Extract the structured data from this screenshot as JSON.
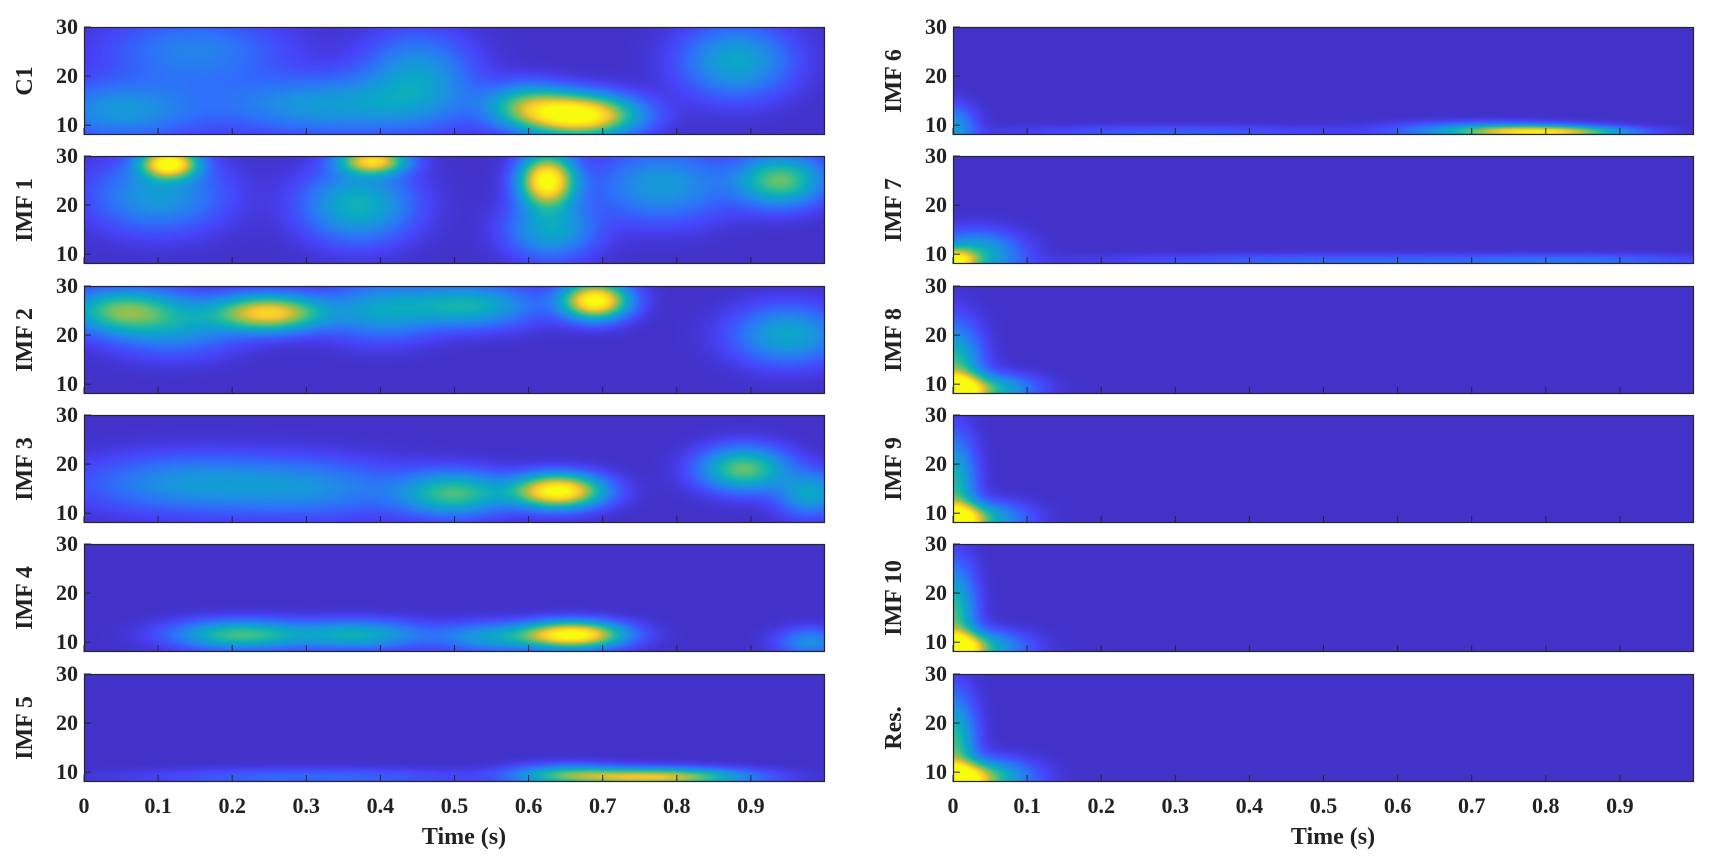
{
  "chart_data": [
    {
      "type": "heatmap",
      "panels": [
        {
          "label": "C1",
          "blobs": [
            {
              "t": 0.67,
              "f": 12,
              "amp": 1.0,
              "st": 0.05,
              "sf": 2.8
            },
            {
              "t": 0.6,
              "f": 14,
              "amp": 0.45,
              "st": 0.04,
              "sf": 3
            },
            {
              "t": 0.05,
              "f": 13,
              "amp": 0.28,
              "st": 0.07,
              "sf": 4
            },
            {
              "t": 0.33,
              "f": 14,
              "amp": 0.3,
              "st": 0.1,
              "sf": 4
            },
            {
              "t": 0.45,
              "f": 20,
              "amp": 0.3,
              "st": 0.05,
              "sf": 6
            },
            {
              "t": 0.88,
              "f": 23,
              "amp": 0.35,
              "st": 0.05,
              "sf": 5
            },
            {
              "t": 0.15,
              "f": 25,
              "amp": 0.22,
              "st": 0.08,
              "sf": 5
            }
          ]
        },
        {
          "label": "IMF 1",
          "blobs": [
            {
              "t": 0.115,
              "f": 28.5,
              "amp": 0.95,
              "st": 0.025,
              "sf": 2
            },
            {
              "t": 0.39,
              "f": 29,
              "amp": 0.8,
              "st": 0.03,
              "sf": 1.8
            },
            {
              "t": 0.625,
              "f": 25,
              "amp": 1.0,
              "st": 0.025,
              "sf": 3.5
            },
            {
              "t": 0.63,
              "f": 15,
              "amp": 0.35,
              "st": 0.04,
              "sf": 4
            },
            {
              "t": 0.94,
              "f": 25,
              "amp": 0.55,
              "st": 0.04,
              "sf": 3.5
            },
            {
              "t": 0.37,
              "f": 20,
              "amp": 0.4,
              "st": 0.05,
              "sf": 5
            },
            {
              "t": 0.1,
              "f": 22,
              "amp": 0.3,
              "st": 0.06,
              "sf": 5
            },
            {
              "t": 0.78,
              "f": 24,
              "amp": 0.3,
              "st": 0.06,
              "sf": 5
            }
          ]
        },
        {
          "label": "IMF 2",
          "blobs": [
            {
              "t": 0.25,
              "f": 24.5,
              "amp": 0.8,
              "st": 0.05,
              "sf": 2.5
            },
            {
              "t": 0.69,
              "f": 27,
              "amp": 1.0,
              "st": 0.03,
              "sf": 2.5
            },
            {
              "t": 0.05,
              "f": 25,
              "amp": 0.5,
              "st": 0.05,
              "sf": 3
            },
            {
              "t": 0.52,
              "f": 26,
              "amp": 0.4,
              "st": 0.06,
              "sf": 3
            },
            {
              "t": 0.95,
              "f": 20,
              "amp": 0.35,
              "st": 0.05,
              "sf": 4
            },
            {
              "t": 0.12,
              "f": 22,
              "amp": 0.28,
              "st": 0.06,
              "sf": 4
            },
            {
              "t": 0.4,
              "f": 25,
              "amp": 0.3,
              "st": 0.05,
              "sf": 4
            }
          ]
        },
        {
          "label": "IMF 3",
          "blobs": [
            {
              "t": 0.64,
              "f": 14.5,
              "amp": 1.0,
              "st": 0.04,
              "sf": 2.3
            },
            {
              "t": 0.5,
              "f": 14,
              "amp": 0.5,
              "st": 0.05,
              "sf": 3
            },
            {
              "t": 0.89,
              "f": 19,
              "amp": 0.55,
              "st": 0.04,
              "sf": 3
            },
            {
              "t": 0.15,
              "f": 16,
              "amp": 0.28,
              "st": 0.1,
              "sf": 4
            },
            {
              "t": 0.32,
              "f": 15,
              "amp": 0.2,
              "st": 0.08,
              "sf": 4
            },
            {
              "t": 0.98,
              "f": 14,
              "amp": 0.35,
              "st": 0.03,
              "sf": 3
            }
          ]
        },
        {
          "label": "IMF 4",
          "blobs": [
            {
              "t": 0.66,
              "f": 11.5,
              "amp": 1.0,
              "st": 0.045,
              "sf": 1.8
            },
            {
              "t": 0.21,
              "f": 11.5,
              "amp": 0.5,
              "st": 0.06,
              "sf": 2
            },
            {
              "t": 0.37,
              "f": 11.5,
              "amp": 0.38,
              "st": 0.06,
              "sf": 2
            },
            {
              "t": 0.55,
              "f": 11,
              "amp": 0.3,
              "st": 0.05,
              "sf": 2
            },
            {
              "t": 0.98,
              "f": 10,
              "amp": 0.25,
              "st": 0.03,
              "sf": 2
            }
          ]
        },
        {
          "label": "IMF 5",
          "blobs": [
            {
              "t": 0.77,
              "f": 9,
              "amp": 0.75,
              "st": 0.08,
              "sf": 1.2
            },
            {
              "t": 0.65,
              "f": 9.5,
              "amp": 0.35,
              "st": 0.05,
              "sf": 1.4
            },
            {
              "t": 0.3,
              "f": 9,
              "amp": 0.15,
              "st": 0.15,
              "sf": 1.2
            }
          ]
        },
        {
          "label": "IMF 6",
          "blobs": [
            {
              "t": 0.8,
              "f": 8.6,
              "amp": 0.75,
              "st": 0.07,
              "sf": 0.8
            },
            {
              "t": 0.72,
              "f": 9,
              "amp": 0.3,
              "st": 0.08,
              "sf": 1.1
            },
            {
              "t": 0.0,
              "f": 9.5,
              "amp": 0.3,
              "st": 0.02,
              "sf": 3
            },
            {
              "t": 0.3,
              "f": 8.5,
              "amp": 0.12,
              "st": 0.15,
              "sf": 1
            }
          ]
        },
        {
          "label": "IMF 7",
          "blobs": [
            {
              "t": 0.0,
              "f": 8.7,
              "amp": 0.8,
              "st": 0.02,
              "sf": 1.5
            },
            {
              "t": 0.03,
              "f": 10,
              "amp": 0.4,
              "st": 0.04,
              "sf": 3
            },
            {
              "t": 0.5,
              "f": 8.7,
              "amp": 0.14,
              "st": 0.2,
              "sf": 0.9
            },
            {
              "t": 0.85,
              "f": 8.7,
              "amp": 0.14,
              "st": 0.12,
              "sf": 0.9
            }
          ]
        },
        {
          "label": "IMF 8",
          "blobs": [
            {
              "t": 0.0,
              "f": 8.5,
              "amp": 1.0,
              "st": 0.025,
              "sf": 2.2
            },
            {
              "t": 0.0,
              "f": 13,
              "amp": 0.5,
              "st": 0.025,
              "sf": 6
            },
            {
              "t": 0.05,
              "f": 9,
              "amp": 0.4,
              "st": 0.04,
              "sf": 2
            }
          ]
        },
        {
          "label": "IMF 9",
          "blobs": [
            {
              "t": 0.0,
              "f": 8.5,
              "amp": 0.95,
              "st": 0.025,
              "sf": 2.2
            },
            {
              "t": 0.0,
              "f": 15,
              "amp": 0.45,
              "st": 0.02,
              "sf": 7
            },
            {
              "t": 0.04,
              "f": 9,
              "amp": 0.35,
              "st": 0.04,
              "sf": 2.2
            }
          ]
        },
        {
          "label": "IMF 10",
          "blobs": [
            {
              "t": 0.0,
              "f": 8.5,
              "amp": 1.0,
              "st": 0.025,
              "sf": 2.2
            },
            {
              "t": 0.0,
              "f": 15,
              "amp": 0.5,
              "st": 0.02,
              "sf": 7
            },
            {
              "t": 0.04,
              "f": 9,
              "amp": 0.35,
              "st": 0.04,
              "sf": 2.2
            }
          ]
        },
        {
          "label": "Res.",
          "blobs": [
            {
              "t": 0.0,
              "f": 8.5,
              "amp": 1.0,
              "st": 0.03,
              "sf": 2.2
            },
            {
              "t": 0.0,
              "f": 15,
              "amp": 0.5,
              "st": 0.02,
              "sf": 7
            },
            {
              "t": 0.05,
              "f": 9,
              "amp": 0.4,
              "st": 0.04,
              "sf": 2.4
            }
          ]
        }
      ],
      "columns": [
        {
          "panels": [
            0,
            1,
            2,
            3,
            4,
            5
          ],
          "xlabel": "Time (s)"
        },
        {
          "panels": [
            6,
            7,
            8,
            9,
            10,
            11
          ],
          "xlabel": "Time (s)"
        }
      ],
      "x_ticks": [
        "0",
        "0.1",
        "0.2",
        "0.3",
        "0.4",
        "0.5",
        "0.6",
        "0.7",
        "0.8",
        "0.9"
      ],
      "x_tick_values": [
        0,
        0.1,
        0.2,
        0.3,
        0.4,
        0.5,
        0.6,
        0.7,
        0.8,
        0.9
      ],
      "xlim": [
        0,
        1
      ],
      "y_ticks": [
        "10",
        "20",
        "30"
      ],
      "y_tick_values": [
        10,
        20,
        30
      ],
      "ylim": [
        8,
        30
      ],
      "colormap": "parula",
      "colormap_stops": [
        "#3e26a8",
        "#4743f8",
        "#2f6ffa",
        "#1d91e2",
        "#0aa9c6",
        "#21bb9e",
        "#69c26c",
        "#b6bd3a",
        "#f7c532",
        "#f8e01e",
        "#f9fb0e"
      ],
      "background_color": "#3e26a8",
      "grid": false
    }
  ]
}
